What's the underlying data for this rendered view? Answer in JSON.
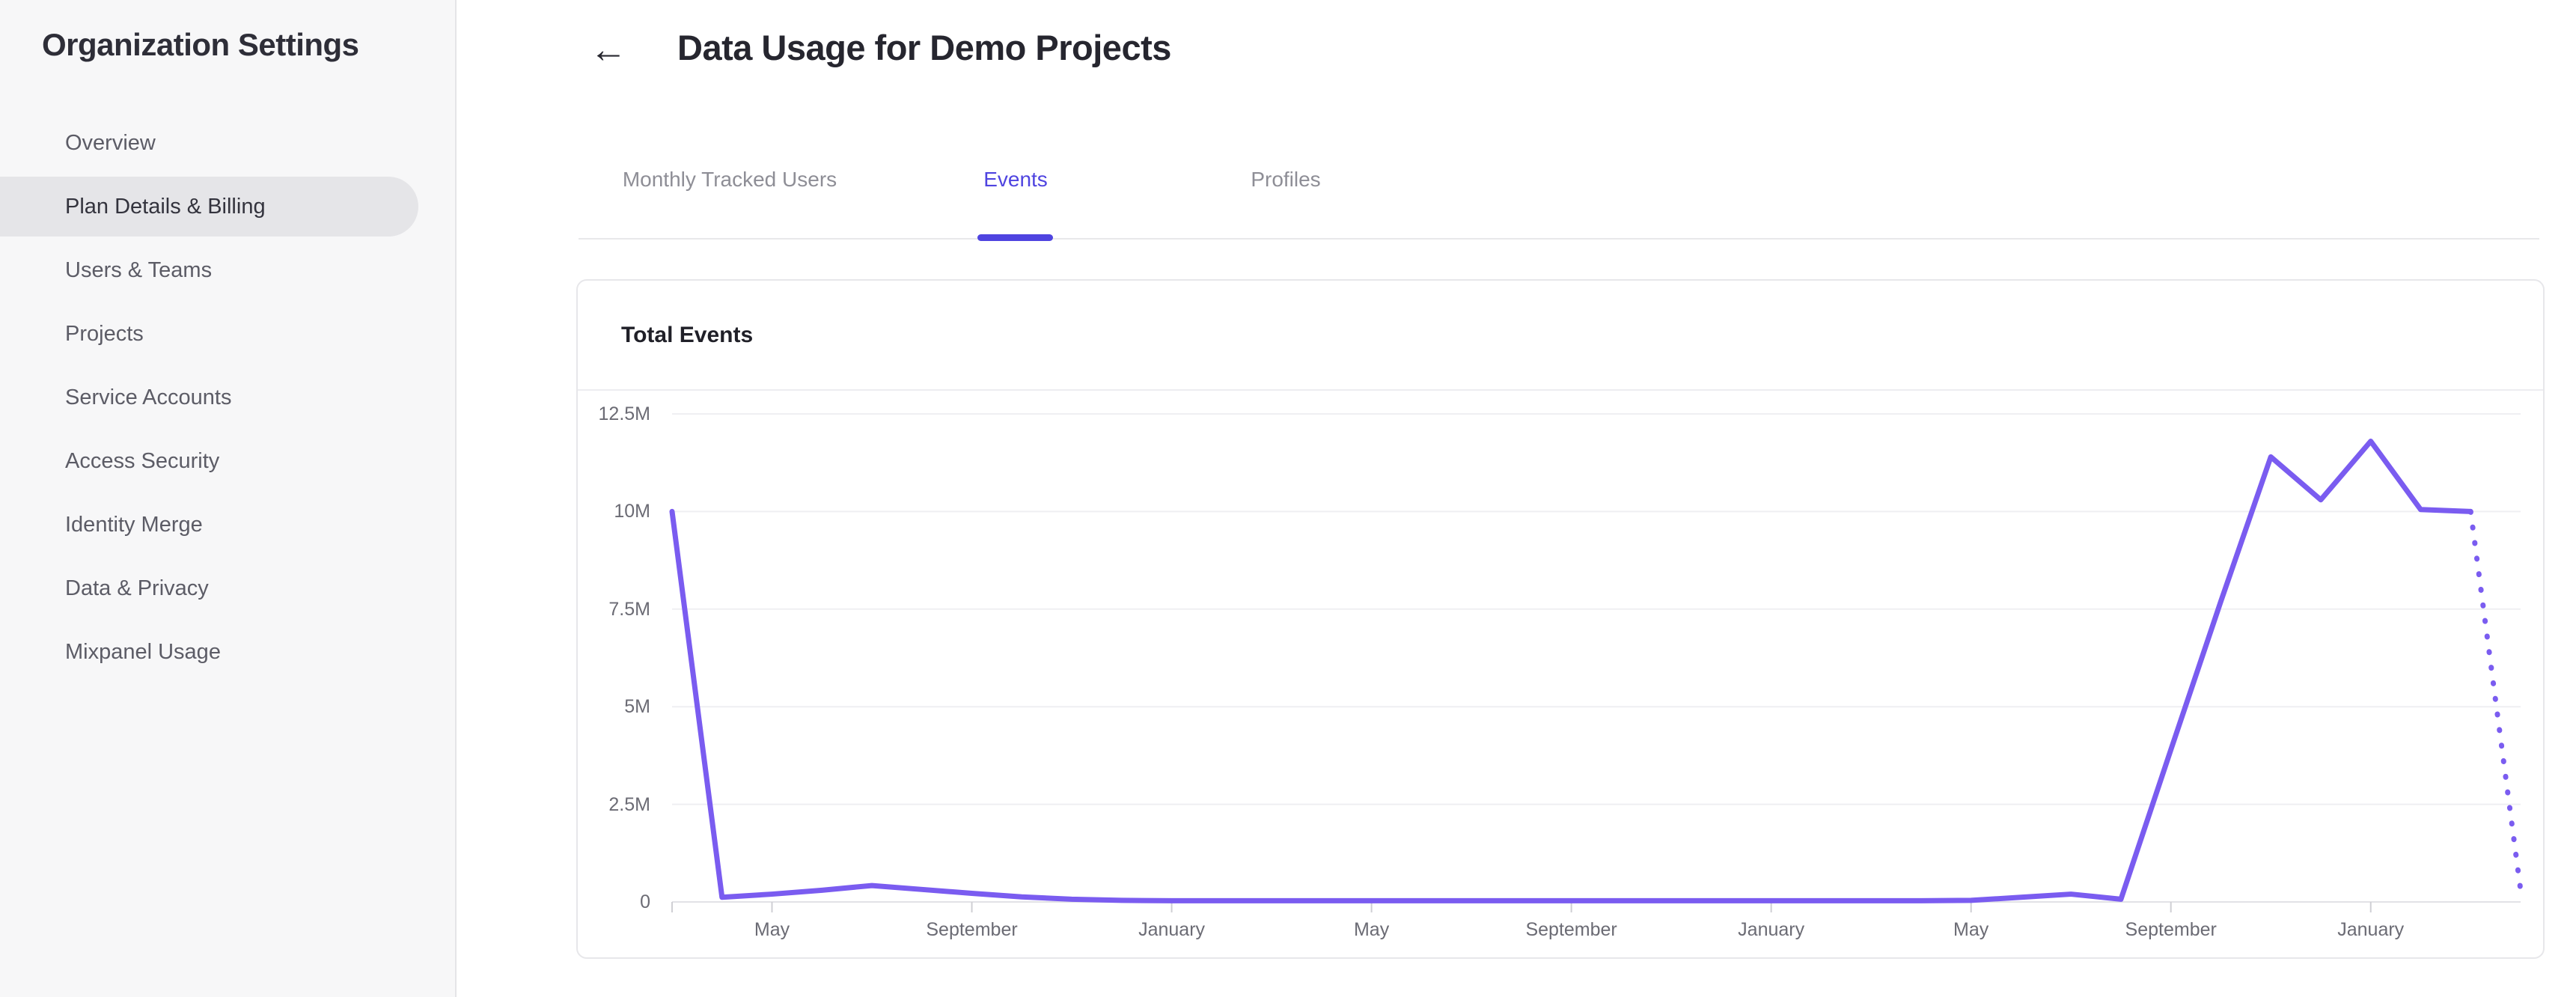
{
  "sidebar": {
    "title": "Organization Settings",
    "items": [
      {
        "label": "Overview",
        "active": false
      },
      {
        "label": "Plan Details & Billing",
        "active": true
      },
      {
        "label": "Users & Teams",
        "active": false
      },
      {
        "label": "Projects",
        "active": false
      },
      {
        "label": "Service Accounts",
        "active": false
      },
      {
        "label": "Access Security",
        "active": false
      },
      {
        "label": "Identity Merge",
        "active": false
      },
      {
        "label": "Data & Privacy",
        "active": false
      },
      {
        "label": "Mixpanel Usage",
        "active": false
      }
    ]
  },
  "header": {
    "back_icon": "←",
    "title": "Data Usage for Demo Projects"
  },
  "tabs": [
    {
      "label": "Monthly Tracked Users",
      "active": false
    },
    {
      "label": "Events",
      "active": true
    },
    {
      "label": "Profiles",
      "active": false
    }
  ],
  "card": {
    "title": "Total Events"
  },
  "colors": {
    "accent": "#4f44e0",
    "line": "#7a5cf0",
    "gridline": "#efeff2",
    "zero_line": "#e2e2e6",
    "tick": "#cfcfd4"
  },
  "chart_data": {
    "type": "line",
    "title": "Total Events",
    "xlabel": "",
    "ylabel": "",
    "unit_suffix": "M",
    "ylim_millions": [
      0,
      12.5
    ],
    "grid": true,
    "legend_position": "none",
    "y_tick_labels": [
      "0",
      "2.5M",
      "5M",
      "7.5M",
      "10M",
      "12.5M"
    ],
    "y_tick_values_millions": [
      0,
      2.5,
      5,
      7.5,
      10,
      12.5
    ],
    "x_tick_labels": [
      "May",
      "September",
      "January",
      "May",
      "September",
      "January",
      "May",
      "September",
      "January"
    ],
    "x_tick_indices": [
      2,
      6,
      10,
      14,
      18,
      22,
      26,
      30,
      34
    ],
    "series": [
      {
        "name": "Total Events",
        "style": "solid-with-dashed-tail",
        "dashed_tail_from_index": 36,
        "values_millions": [
          10,
          0.12,
          0.2,
          0.3,
          0.42,
          0.32,
          0.22,
          0.13,
          0.07,
          0.04,
          0.03,
          0.03,
          0.03,
          0.03,
          0.03,
          0.03,
          0.03,
          0.03,
          0.03,
          0.03,
          0.03,
          0.03,
          0.03,
          0.03,
          0.03,
          0.03,
          0.04,
          0.12,
          0.2,
          0.07,
          3.9,
          7.7,
          11.4,
          10.3,
          11.8,
          10.05,
          10.0,
          0.3
        ]
      }
    ]
  }
}
